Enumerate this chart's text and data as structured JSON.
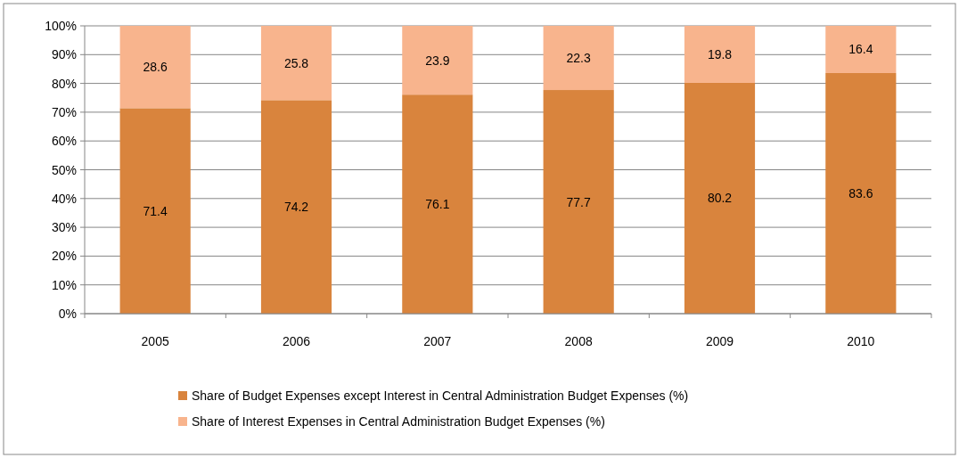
{
  "chart_data": {
    "type": "bar",
    "stacked": true,
    "categories": [
      "2005",
      "2006",
      "2007",
      "2008",
      "2009",
      "2010"
    ],
    "series": [
      {
        "name": "Share of Budget Expenses except Interest in Central Administration Budget Expenses (%)",
        "color": "#d9843d",
        "values": [
          71.4,
          74.2,
          76.1,
          77.7,
          80.2,
          83.6
        ]
      },
      {
        "name": "Share of Interest Expenses in Central Administration Budget Expenses (%)",
        "color": "#f8b48d",
        "values": [
          28.6,
          25.8,
          23.9,
          22.3,
          19.8,
          16.4
        ]
      }
    ],
    "ylim": [
      0,
      100
    ],
    "yticks": [
      {
        "value": 0,
        "label": "0%"
      },
      {
        "value": 10,
        "label": "10%"
      },
      {
        "value": 20,
        "label": "20%"
      },
      {
        "value": 30,
        "label": "30%"
      },
      {
        "value": 40,
        "label": "40%"
      },
      {
        "value": 50,
        "label": "50%"
      },
      {
        "value": 60,
        "label": "60%"
      },
      {
        "value": 70,
        "label": "70%"
      },
      {
        "value": 80,
        "label": "80%"
      },
      {
        "value": 90,
        "label": "90%"
      },
      {
        "value": 100,
        "label": "100%"
      }
    ],
    "grid": "y",
    "legend": "bottom",
    "data_labels": true
  }
}
